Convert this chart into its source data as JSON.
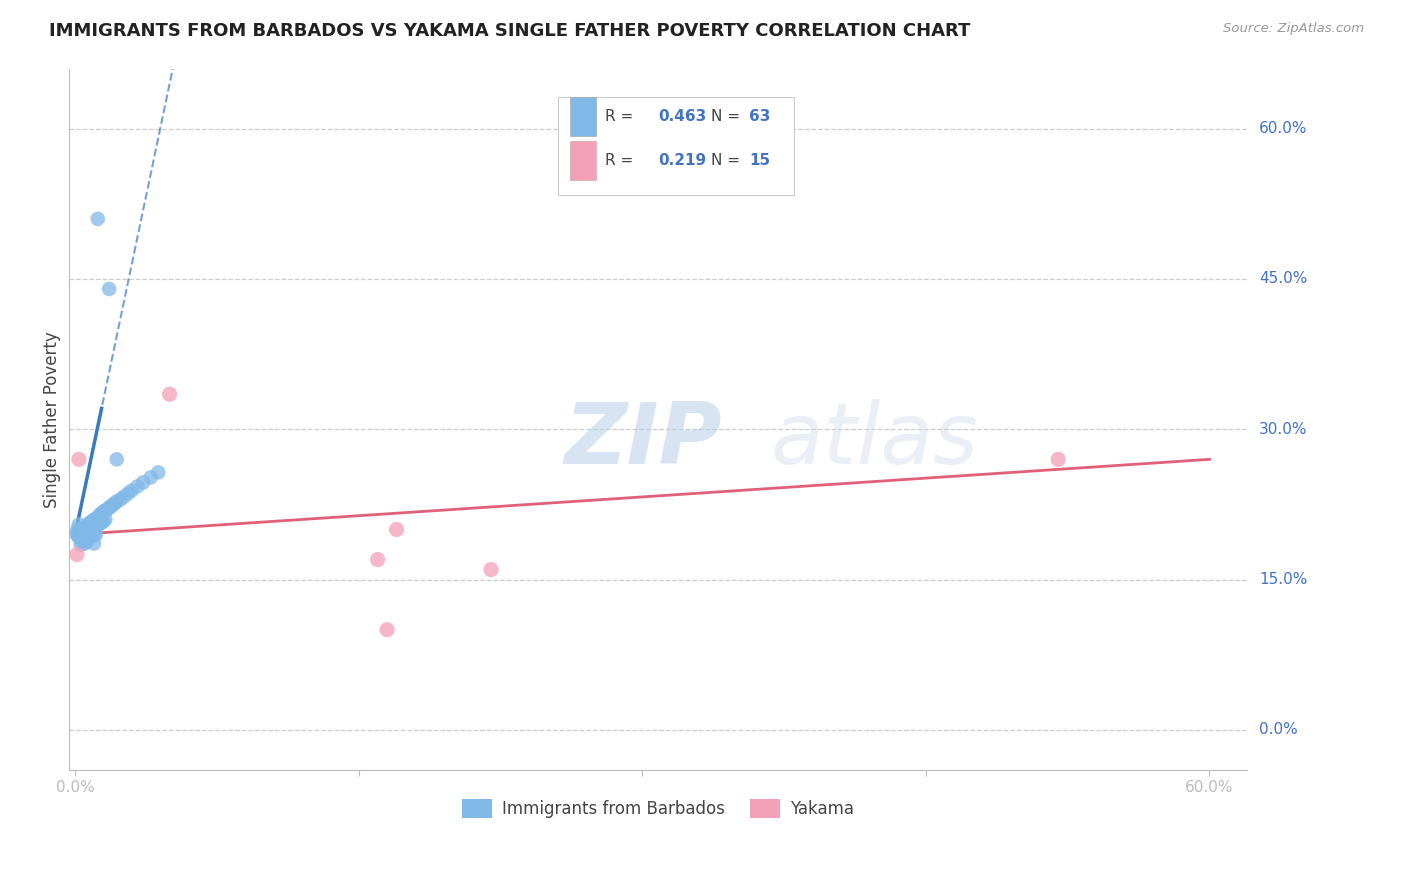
{
  "title": "IMMIGRANTS FROM BARBADOS VS YAKAMA SINGLE FATHER POVERTY CORRELATION CHART",
  "source": "Source: ZipAtlas.com",
  "ylabel": "Single Father Poverty",
  "right_ytick_vals": [
    0.0,
    0.15,
    0.3,
    0.45,
    0.6
  ],
  "right_ytick_labels": [
    "0.0%",
    "15.0%",
    "30.0%",
    "45.0%",
    "60.0%"
  ],
  "xlim": [
    -0.003,
    0.62
  ],
  "ylim": [
    -0.04,
    0.66
  ],
  "color_blue": "#80b8e8",
  "color_pink": "#f4a0b8",
  "color_blue_line": "#3a7abf",
  "color_pink_line": "#e0607a",
  "watermark_zip": "ZIP",
  "watermark_atlas": "atlas",
  "barbados_x": [
    0.0008,
    0.0012,
    0.0015,
    0.002,
    0.002,
    0.002,
    0.003,
    0.003,
    0.003,
    0.003,
    0.004,
    0.004,
    0.004,
    0.005,
    0.005,
    0.005,
    0.005,
    0.006,
    0.006,
    0.006,
    0.007,
    0.007,
    0.007,
    0.008,
    0.008,
    0.008,
    0.009,
    0.009,
    0.009,
    0.01,
    0.01,
    0.01,
    0.01,
    0.011,
    0.011,
    0.011,
    0.012,
    0.012,
    0.013,
    0.013,
    0.014,
    0.014,
    0.015,
    0.015,
    0.016,
    0.016,
    0.017,
    0.018,
    0.019,
    0.02,
    0.021,
    0.022,
    0.024,
    0.026,
    0.028,
    0.03,
    0.033,
    0.036,
    0.04,
    0.044,
    0.012,
    0.018,
    0.022
  ],
  "barbados_y": [
    0.195,
    0.2,
    0.195,
    0.205,
    0.198,
    0.192,
    0.2,
    0.195,
    0.19,
    0.185,
    0.2,
    0.196,
    0.188,
    0.202,
    0.198,
    0.193,
    0.186,
    0.204,
    0.197,
    0.188,
    0.205,
    0.198,
    0.19,
    0.207,
    0.2,
    0.192,
    0.208,
    0.2,
    0.193,
    0.21,
    0.202,
    0.194,
    0.186,
    0.21,
    0.202,
    0.195,
    0.212,
    0.204,
    0.215,
    0.206,
    0.216,
    0.207,
    0.218,
    0.208,
    0.219,
    0.21,
    0.22,
    0.222,
    0.223,
    0.225,
    0.226,
    0.228,
    0.23,
    0.233,
    0.236,
    0.239,
    0.243,
    0.247,
    0.252,
    0.257,
    0.51,
    0.44,
    0.27
  ],
  "yakama_x": [
    0.001,
    0.002,
    0.05,
    0.16,
    0.165,
    0.17,
    0.22,
    0.52
  ],
  "yakama_y": [
    0.175,
    0.27,
    0.335,
    0.17,
    0.1,
    0.2,
    0.16,
    0.27
  ],
  "yakama_trend_x0": 0.0,
  "yakama_trend_x1": 0.6,
  "yakama_trend_y0": 0.195,
  "yakama_trend_y1": 0.27
}
